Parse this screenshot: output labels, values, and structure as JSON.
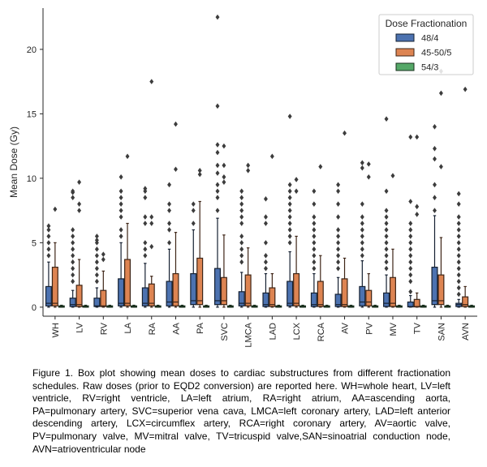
{
  "chart_data": {
    "type": "box",
    "ylabel": "Mean Dose (Gy)",
    "xlabel": "",
    "ylim": [
      -0.7,
      23.2
    ],
    "yticks": [
      0,
      5,
      10,
      15,
      20
    ],
    "grid": false,
    "legend_position": "top-right",
    "legend_title": "Dose Fractionation",
    "categories": [
      "WH",
      "LV",
      "RV",
      "LA",
      "RA",
      "AA",
      "PA",
      "SVC",
      "LMCA",
      "LAD",
      "LCX",
      "RCA",
      "AV",
      "PV",
      "MV",
      "TV",
      "SAN",
      "AVN"
    ],
    "series": [
      {
        "name": "48/4",
        "color": "#4c72b0",
        "boxes": [
          {
            "q1": 0.1,
            "median": 0.3,
            "q3": 1.6,
            "whislo": 0.0,
            "whishi": 3.5,
            "fliers": [
              4.0,
              4.5,
              5.0,
              5.5,
              6.0,
              6.3
            ]
          },
          {
            "q1": 0.05,
            "median": 0.2,
            "q3": 0.7,
            "whislo": 0.0,
            "whishi": 1.3,
            "fliers": [
              2.0,
              2.5,
              3.0,
              3.5,
              4.0,
              4.5,
              5.0,
              5.5,
              6.0,
              8.5,
              8.9,
              9.0
            ]
          },
          {
            "q1": 0.05,
            "median": 0.1,
            "q3": 0.7,
            "whislo": 0.0,
            "whishi": 1.5,
            "fliers": [
              2.0,
              2.5,
              3.0,
              3.5,
              4.0,
              4.5,
              5.0,
              5.2,
              5.5
            ]
          },
          {
            "q1": 0.1,
            "median": 0.3,
            "q3": 2.2,
            "whislo": 0.0,
            "whishi": 5.0,
            "fliers": [
              5.5,
              6.0,
              7.0,
              7.5,
              8.0,
              8.5,
              9.0,
              10.1
            ]
          },
          {
            "q1": 0.1,
            "median": 0.3,
            "q3": 1.5,
            "whislo": 0.0,
            "whishi": 3.4,
            "fliers": [
              4.0,
              4.5,
              5.0,
              6.5,
              7.0,
              8.5,
              9.0,
              9.2
            ]
          },
          {
            "q1": 0.1,
            "median": 0.4,
            "q3": 2.0,
            "whislo": 0.0,
            "whishi": 4.5,
            "fliers": [
              5.0,
              6.0,
              6.5,
              7.5,
              8.0,
              9.5
            ]
          },
          {
            "q1": 0.2,
            "median": 0.5,
            "q3": 2.6,
            "whislo": 0.0,
            "whishi": 6.0,
            "fliers": [
              6.5,
              7.5,
              8.0
            ]
          },
          {
            "q1": 0.2,
            "median": 0.5,
            "q3": 3.0,
            "whislo": 0.0,
            "whishi": 6.9,
            "fliers": [
              7.5,
              8.5,
              9.0,
              9.5,
              10.4,
              11.0,
              12.0,
              12.6,
              15.6,
              22.5
            ]
          },
          {
            "q1": 0.1,
            "median": 0.3,
            "q3": 1.2,
            "whislo": 0.0,
            "whishi": 2.7,
            "fliers": [
              3.5,
              4.0,
              4.5,
              5.0,
              5.5,
              6.5,
              7.0,
              7.5,
              8.0,
              8.5,
              9.0
            ]
          },
          {
            "q1": 0.05,
            "median": 0.2,
            "q3": 1.1,
            "whislo": 0.0,
            "whishi": 2.6,
            "fliers": [
              3.0,
              3.5,
              4.0,
              5.0,
              6.5,
              7.0,
              8.4
            ]
          },
          {
            "q1": 0.1,
            "median": 0.3,
            "q3": 2.0,
            "whislo": 0.0,
            "whishi": 4.3,
            "fliers": [
              5.0,
              5.5,
              6.0,
              6.5,
              7.0,
              7.5,
              8.0,
              8.5,
              9.0,
              9.5,
              14.8
            ]
          },
          {
            "q1": 0.05,
            "median": 0.2,
            "q3": 1.1,
            "whislo": 0.0,
            "whishi": 2.6,
            "fliers": [
              3.0,
              3.5,
              4.0,
              4.5,
              5.0,
              5.5,
              6.0,
              6.5,
              7.0,
              8.0,
              9.0
            ]
          },
          {
            "q1": 0.05,
            "median": 0.2,
            "q3": 1.0,
            "whislo": 0.0,
            "whishi": 2.3,
            "fliers": [
              3.0,
              3.5,
              4.0,
              4.5,
              5.0,
              5.5,
              6.0,
              7.0,
              8.0,
              9.0,
              9.5
            ]
          },
          {
            "q1": 0.1,
            "median": 0.4,
            "q3": 1.6,
            "whislo": 0.0,
            "whishi": 3.6,
            "fliers": [
              4.0,
              4.5,
              5.0,
              5.5,
              6.0,
              6.5,
              7.0,
              8.0,
              10.8,
              11.2
            ]
          },
          {
            "q1": 0.05,
            "median": 0.3,
            "q3": 1.1,
            "whislo": 0.0,
            "whishi": 2.5,
            "fliers": [
              3.0,
              3.5,
              4.0,
              4.5,
              5.0,
              5.5,
              6.0,
              6.5,
              7.0,
              7.5,
              9.0,
              14.6
            ]
          },
          {
            "q1": 0.02,
            "median": 0.05,
            "q3": 0.4,
            "whislo": 0.0,
            "whishi": 0.9,
            "fliers": [
              1.2,
              2.0,
              2.5,
              3.0,
              3.5,
              4.0,
              4.5,
              5.0,
              5.5,
              6.0,
              6.5,
              8.2,
              13.2
            ]
          },
          {
            "q1": 0.2,
            "median": 0.5,
            "q3": 3.1,
            "whislo": 0.0,
            "whishi": 7.1,
            "fliers": [
              7.5,
              8.5,
              9.5,
              11.5,
              12.3,
              14.0
            ]
          },
          {
            "q1": 0.05,
            "median": 0.2,
            "q3": 0.3,
            "whislo": 0.0,
            "whishi": 0.6,
            "fliers": [
              1.0,
              1.5,
              2.0,
              2.5,
              3.0,
              3.5,
              4.0,
              4.5,
              5.0,
              5.5,
              6.0,
              6.5,
              7.0,
              8.0,
              8.8
            ]
          }
        ]
      },
      {
        "name": "45-50/5",
        "color": "#dd8452",
        "boxes": [
          {
            "q1": 0.1,
            "median": 0.3,
            "q3": 3.1,
            "whislo": 0.0,
            "whishi": 5.0,
            "fliers": [
              7.6
            ]
          },
          {
            "q1": 0.05,
            "median": 0.2,
            "q3": 1.7,
            "whislo": 0.0,
            "whishi": 3.7,
            "fliers": [
              7.5,
              8.0,
              9.7
            ]
          },
          {
            "q1": 0.05,
            "median": 0.1,
            "q3": 1.3,
            "whislo": 0.0,
            "whishi": 2.8,
            "fliers": [
              3.7,
              4.1
            ]
          },
          {
            "q1": 0.1,
            "median": 0.3,
            "q3": 3.7,
            "whislo": 0.0,
            "whishi": 6.5,
            "fliers": [
              11.7
            ]
          },
          {
            "q1": 0.1,
            "median": 0.3,
            "q3": 1.8,
            "whislo": 0.0,
            "whishi": 2.4,
            "fliers": [
              4.7,
              6.5,
              7.0,
              17.5
            ]
          },
          {
            "q1": 0.1,
            "median": 0.4,
            "q3": 2.6,
            "whislo": 0.0,
            "whishi": 5.8,
            "fliers": [
              10.7,
              14.2
            ]
          },
          {
            "q1": 0.2,
            "median": 0.5,
            "q3": 3.8,
            "whislo": 0.0,
            "whishi": 8.2,
            "fliers": [
              10.3,
              10.6
            ]
          },
          {
            "q1": 0.2,
            "median": 0.5,
            "q3": 2.3,
            "whislo": 0.0,
            "whishi": 5.6,
            "fliers": [
              9.7,
              10.1,
              11.0,
              12.5
            ]
          },
          {
            "q1": 0.1,
            "median": 0.3,
            "q3": 2.5,
            "whislo": 0.0,
            "whishi": 4.6,
            "fliers": [
              10.6,
              11.0
            ]
          },
          {
            "q1": 0.05,
            "median": 0.2,
            "q3": 1.5,
            "whislo": 0.0,
            "whishi": 2.6,
            "fliers": [
              11.7
            ]
          },
          {
            "q1": 0.1,
            "median": 0.3,
            "q3": 2.6,
            "whislo": 0.0,
            "whishi": 5.5,
            "fliers": [
              9.0,
              9.9
            ]
          },
          {
            "q1": 0.05,
            "median": 0.2,
            "q3": 2.0,
            "whislo": 0.0,
            "whishi": 4.0,
            "fliers": [
              10.9
            ]
          },
          {
            "q1": 0.05,
            "median": 0.2,
            "q3": 2.2,
            "whislo": 0.0,
            "whishi": 3.8,
            "fliers": [
              13.5
            ]
          },
          {
            "q1": 0.1,
            "median": 0.4,
            "q3": 1.3,
            "whislo": 0.0,
            "whishi": 2.6,
            "fliers": [
              10.1,
              11.1
            ]
          },
          {
            "q1": 0.05,
            "median": 0.3,
            "q3": 2.3,
            "whislo": 0.0,
            "whishi": 4.5,
            "fliers": [
              10.2
            ]
          },
          {
            "q1": 0.02,
            "median": 0.05,
            "q3": 0.6,
            "whislo": 0.0,
            "whishi": 1.1,
            "fliers": [
              7.2,
              7.8,
              13.2
            ]
          },
          {
            "q1": 0.2,
            "median": 0.5,
            "q3": 2.5,
            "whislo": 0.0,
            "whishi": 5.4,
            "fliers": [
              10.9,
              16.6,
              18.3
            ]
          },
          {
            "q1": 0.05,
            "median": 0.2,
            "q3": 0.8,
            "whislo": 0.0,
            "whishi": 1.6,
            "fliers": [
              16.9
            ]
          }
        ]
      },
      {
        "name": "54/3",
        "color": "#55a868",
        "boxes": [
          {
            "q1": 0.0,
            "median": 0.05,
            "q3": 0.1,
            "whislo": 0.0,
            "whishi": 0.15,
            "fliers": []
          },
          {
            "q1": 0.0,
            "median": 0.05,
            "q3": 0.1,
            "whislo": 0.0,
            "whishi": 0.15,
            "fliers": []
          },
          {
            "q1": 0.0,
            "median": 0.05,
            "q3": 0.1,
            "whislo": 0.0,
            "whishi": 0.15,
            "fliers": []
          },
          {
            "q1": 0.0,
            "median": 0.05,
            "q3": 0.1,
            "whislo": 0.0,
            "whishi": 0.15,
            "fliers": []
          },
          {
            "q1": 0.0,
            "median": 0.05,
            "q3": 0.1,
            "whislo": 0.0,
            "whishi": 0.15,
            "fliers": []
          },
          {
            "q1": 0.0,
            "median": 0.05,
            "q3": 0.1,
            "whislo": 0.0,
            "whishi": 0.15,
            "fliers": []
          },
          {
            "q1": 0.0,
            "median": 0.05,
            "q3": 0.1,
            "whislo": 0.0,
            "whishi": 0.15,
            "fliers": []
          },
          {
            "q1": 0.0,
            "median": 0.05,
            "q3": 0.1,
            "whislo": 0.0,
            "whishi": 0.15,
            "fliers": []
          },
          {
            "q1": 0.0,
            "median": 0.05,
            "q3": 0.1,
            "whislo": 0.0,
            "whishi": 0.15,
            "fliers": []
          },
          {
            "q1": 0.0,
            "median": 0.05,
            "q3": 0.1,
            "whislo": 0.0,
            "whishi": 0.15,
            "fliers": []
          },
          {
            "q1": 0.0,
            "median": 0.05,
            "q3": 0.1,
            "whislo": 0.0,
            "whishi": 0.15,
            "fliers": []
          },
          {
            "q1": 0.0,
            "median": 0.05,
            "q3": 0.1,
            "whislo": 0.0,
            "whishi": 0.15,
            "fliers": []
          },
          {
            "q1": 0.0,
            "median": 0.05,
            "q3": 0.1,
            "whislo": 0.0,
            "whishi": 0.15,
            "fliers": []
          },
          {
            "q1": 0.0,
            "median": 0.05,
            "q3": 0.1,
            "whislo": 0.0,
            "whishi": 0.15,
            "fliers": []
          },
          {
            "q1": 0.0,
            "median": 0.05,
            "q3": 0.1,
            "whislo": 0.0,
            "whishi": 0.15,
            "fliers": []
          },
          {
            "q1": 0.0,
            "median": 0.05,
            "q3": 0.1,
            "whislo": 0.0,
            "whishi": 0.15,
            "fliers": []
          },
          {
            "q1": 0.0,
            "median": 0.05,
            "q3": 0.1,
            "whislo": 0.0,
            "whishi": 0.15,
            "fliers": []
          },
          {
            "q1": 0.0,
            "median": 0.05,
            "q3": 0.1,
            "whislo": 0.0,
            "whishi": 0.15,
            "fliers": []
          }
        ]
      }
    ]
  },
  "caption": "Figure 1. Box plot showing mean doses to cardiac substructures from different fractionation schedules. Raw doses (prior to EQD2 conversion) are reported here. WH=whole heart, LV=left ventricle, RV=right ventricle, LA=left atrium, RA=right atrium, AA=ascending aorta, PA=pulmonary artery, SVC=superior vena cava, LMCA=left coronary artery, LAD=left anterior descending artery, LCX=circumflex artery, RCA=right coronary artery, AV=aortic valve, PV=pulmonary valve, MV=mitral valve, TV=tricuspid valve,SAN=sinoatrial conduction node, AVN=atrioventricular node"
}
